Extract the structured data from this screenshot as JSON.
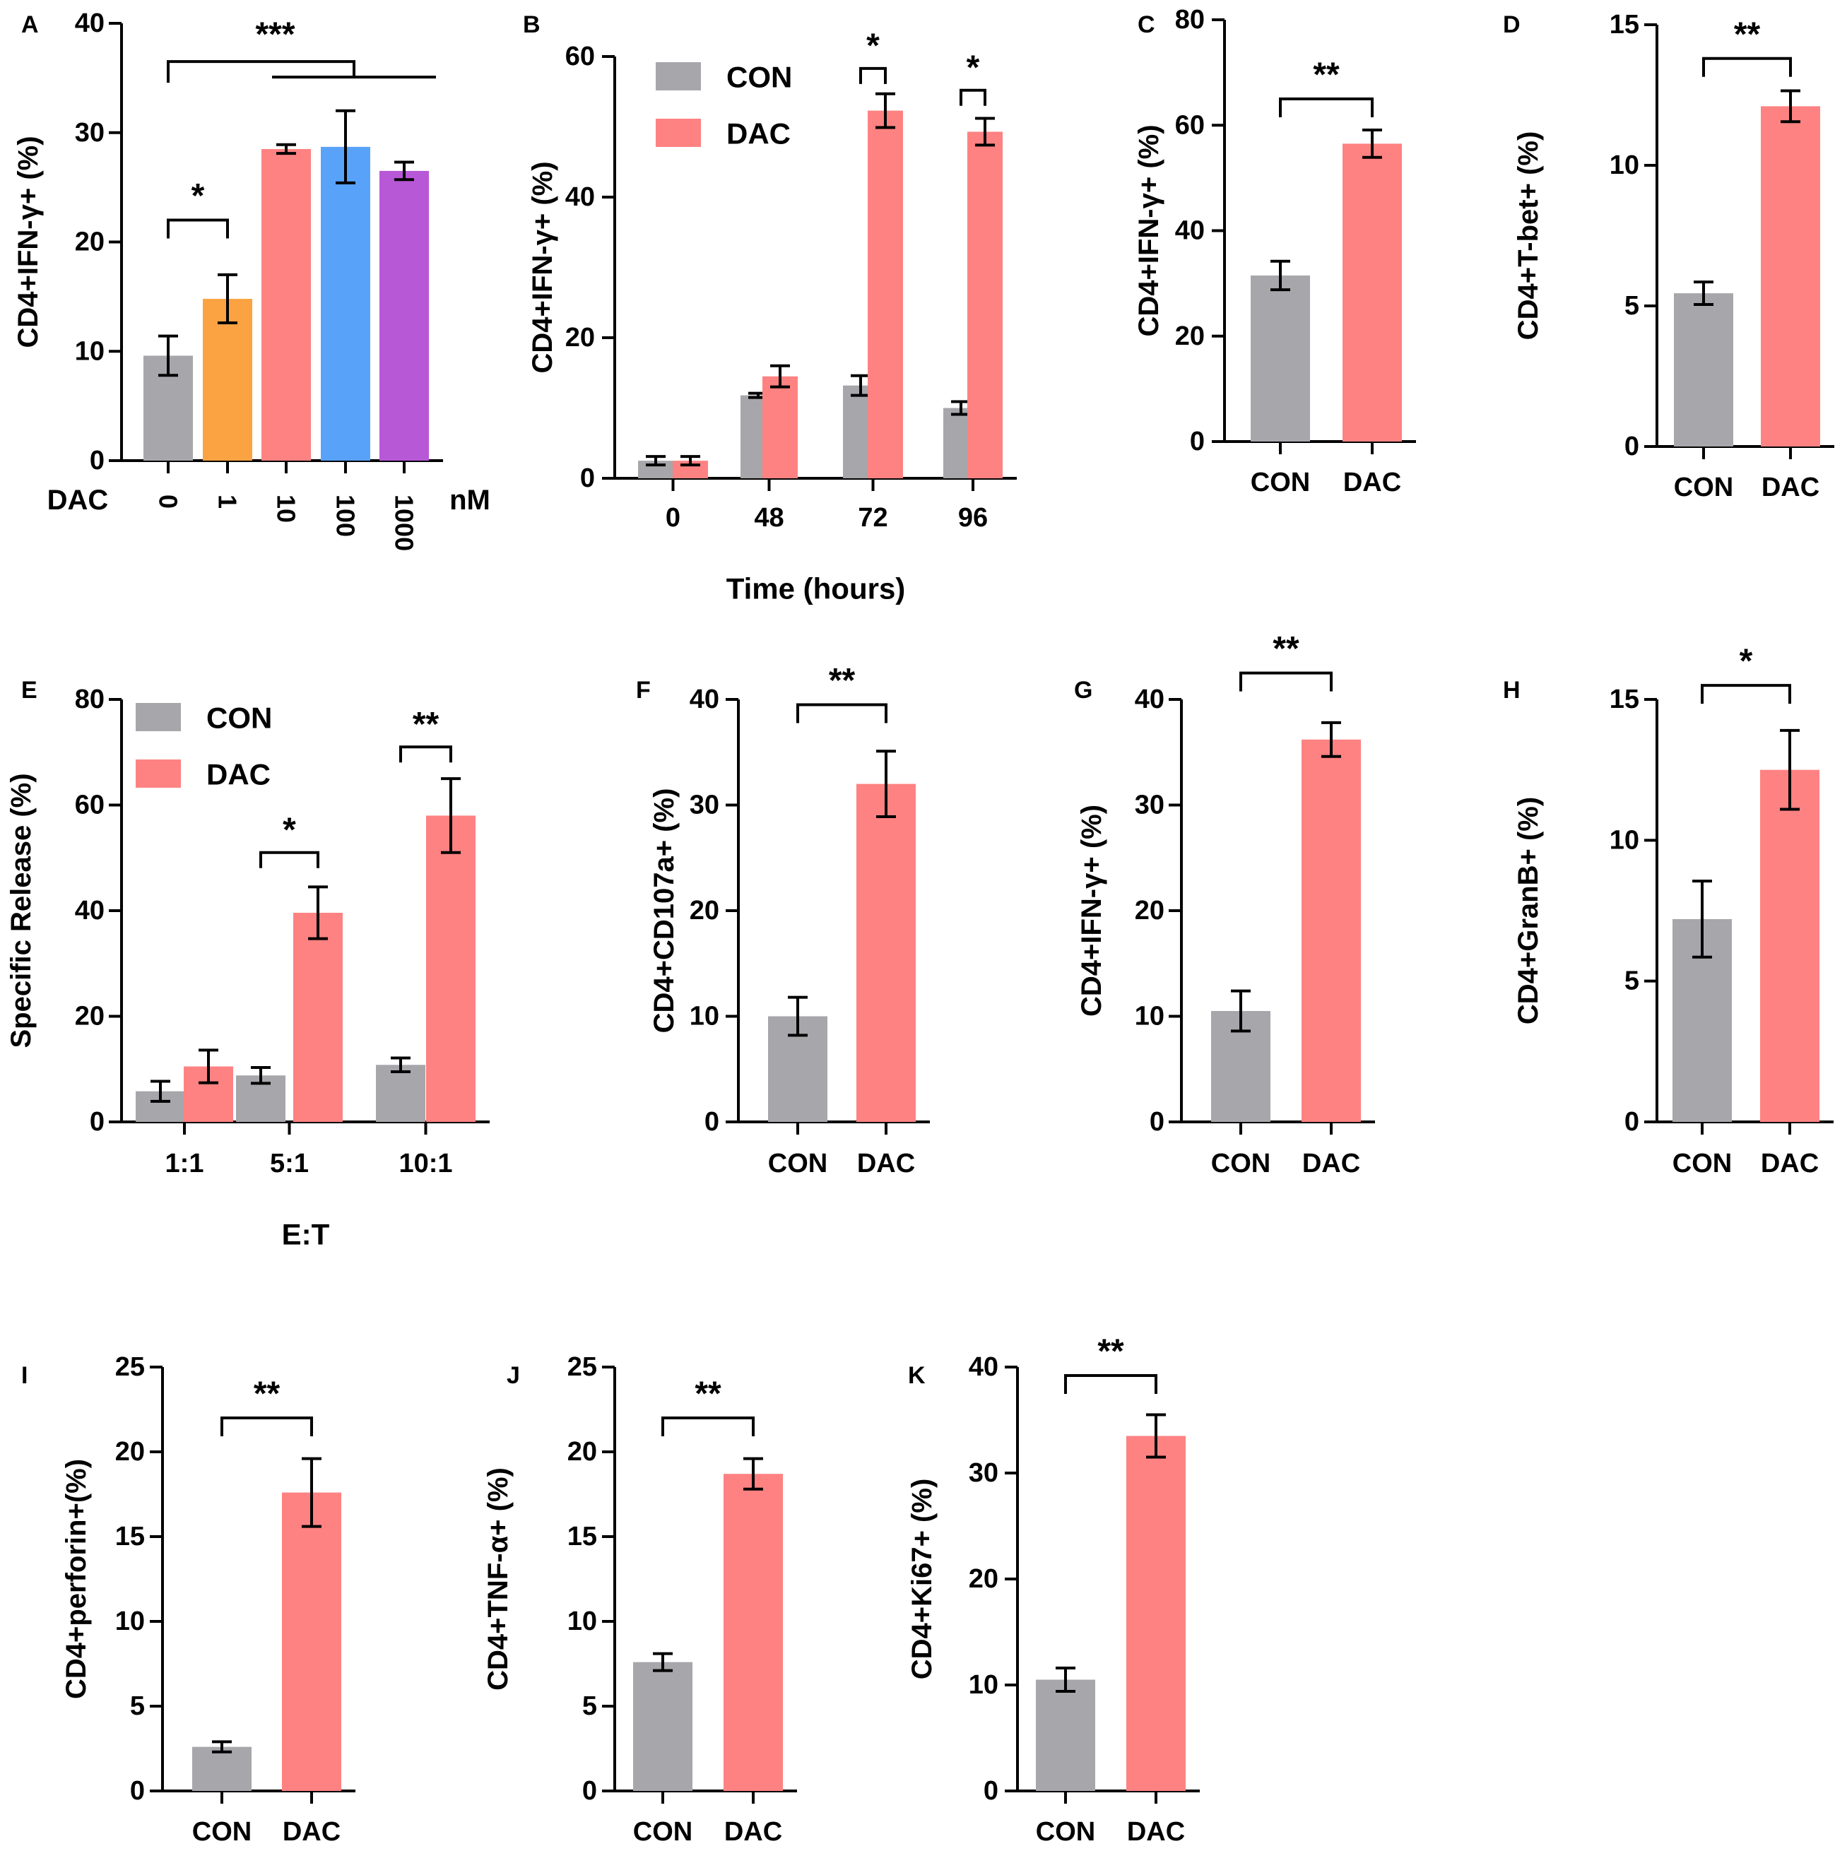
{
  "chart_data": [
    {
      "panel": "A",
      "type": "bar",
      "ylabel": "CD4+IFN-γ+ (%)",
      "ylim": [
        0,
        40
      ],
      "yticks": [
        0,
        10,
        20,
        30,
        40
      ],
      "xprefix": "DAC",
      "xunit": "nM",
      "categories": [
        "0",
        "1",
        "10",
        "100",
        "1000"
      ],
      "values": [
        9.6,
        14.8,
        28.5,
        28.7,
        26.5
      ],
      "errors": [
        1.8,
        2.2,
        0.4,
        3.3,
        0.8
      ],
      "colors": [
        "#a7a6ab",
        "#fba342",
        "#fe8282",
        "#58a3f9",
        "#b758d6"
      ],
      "brackets": [
        {
          "from": 0,
          "to": 1,
          "label": "*",
          "y": 22
        },
        {
          "from": 0,
          "to": 2,
          "label": "***",
          "y": 36.5,
          "bar_to": 4
        }
      ]
    },
    {
      "panel": "B",
      "type": "bar",
      "ylabel": "CD4+IFN-γ+ (%)",
      "ylim": [
        0,
        60
      ],
      "yticks": [
        0,
        20,
        40,
        60
      ],
      "xlabel": "Time (hours)",
      "categories": [
        "0",
        "48",
        "72",
        "96"
      ],
      "series": [
        {
          "name": "CON",
          "values": [
            2.5,
            11.8,
            13.2,
            10.0
          ],
          "errors": [
            0.6,
            0.3,
            1.4,
            0.9
          ]
        },
        {
          "name": "DAC",
          "values": [
            2.5,
            14.5,
            52.3,
            49.3
          ],
          "errors": [
            0.6,
            1.5,
            2.4,
            1.9
          ]
        }
      ],
      "legend": "top-left",
      "brackets": [
        {
          "cat": 2,
          "label": "*",
          "y": 58.3
        },
        {
          "cat": 3,
          "label": "*",
          "y": 55.2
        }
      ]
    },
    {
      "panel": "C",
      "type": "bar",
      "ylabel": "CD4+IFN-γ+ (%)",
      "ylim": [
        0,
        80
      ],
      "yticks": [
        0,
        20,
        40,
        60,
        80
      ],
      "categories": [
        "CON",
        "DAC"
      ],
      "values": [
        31.5,
        56.5
      ],
      "errors": [
        2.7,
        2.6
      ],
      "brackets": [
        {
          "from": 0,
          "to": 1,
          "label": "**",
          "y": 65
        }
      ]
    },
    {
      "panel": "D",
      "type": "bar",
      "ylabel": "CD4+T-bet+ (%)",
      "ylim": [
        0,
        15
      ],
      "yticks": [
        0,
        5,
        10,
        15
      ],
      "categories": [
        "CON",
        "DAC"
      ],
      "values": [
        5.45,
        12.1
      ],
      "errors": [
        0.4,
        0.55
      ],
      "brackets": [
        {
          "from": 0,
          "to": 1,
          "label": "**",
          "y": 13.8
        }
      ]
    },
    {
      "panel": "E",
      "type": "bar",
      "ylabel": "Specific Release (%)",
      "ylim": [
        0,
        80
      ],
      "yticks": [
        0,
        20,
        40,
        60,
        80
      ],
      "xlabel": "E:T",
      "categories": [
        "1:1",
        "5:1",
        "10:1"
      ],
      "series": [
        {
          "name": "CON",
          "values": [
            5.8,
            8.8,
            10.8
          ],
          "errors": [
            1.9,
            1.5,
            1.3
          ]
        },
        {
          "name": "DAC",
          "values": [
            10.5,
            39.6,
            58.0
          ],
          "errors": [
            3.1,
            4.9,
            7.0
          ]
        }
      ],
      "legend": "top-left",
      "brackets": [
        {
          "cat": 1,
          "label": "*",
          "y": 51
        },
        {
          "cat": 2,
          "label": "**",
          "y": 71
        }
      ]
    },
    {
      "panel": "F",
      "type": "bar",
      "ylabel": "CD4+CD107a+ (%)",
      "ylim": [
        0,
        40
      ],
      "yticks": [
        0,
        10,
        20,
        30,
        40
      ],
      "categories": [
        "CON",
        "DAC"
      ],
      "values": [
        10.0,
        32.0
      ],
      "errors": [
        1.8,
        3.1
      ],
      "brackets": [
        {
          "from": 0,
          "to": 1,
          "label": "**",
          "y": 39.5
        }
      ]
    },
    {
      "panel": "G",
      "type": "bar",
      "ylabel": "CD4+IFN-γ+ (%)",
      "ylim": [
        0,
        40
      ],
      "yticks": [
        0,
        10,
        20,
        30,
        40
      ],
      "categories": [
        "CON",
        "DAC"
      ],
      "values": [
        10.5,
        36.2
      ],
      "errors": [
        1.9,
        1.6
      ],
      "brackets": [
        {
          "from": 0,
          "to": 1,
          "label": "**",
          "y": 42.5
        }
      ]
    },
    {
      "panel": "H",
      "type": "bar",
      "ylabel": "CD4+GranB+ (%)",
      "ylim": [
        0,
        15
      ],
      "yticks": [
        0,
        5,
        10,
        15
      ],
      "categories": [
        "CON",
        "DAC"
      ],
      "values": [
        7.2,
        12.5
      ],
      "errors": [
        1.35,
        1.4
      ],
      "brackets": [
        {
          "from": 0,
          "to": 1,
          "label": "*",
          "y": 15.5
        }
      ]
    },
    {
      "panel": "I",
      "type": "bar",
      "ylabel": "CD4+perforin+(%)",
      "ylim": [
        0,
        25
      ],
      "yticks": [
        0,
        5,
        10,
        15,
        20,
        25
      ],
      "categories": [
        "CON",
        "DAC"
      ],
      "values": [
        2.6,
        17.6
      ],
      "errors": [
        0.3,
        2.0
      ],
      "brackets": [
        {
          "from": 0,
          "to": 1,
          "label": "**",
          "y": 22
        }
      ]
    },
    {
      "panel": "J",
      "type": "bar",
      "ylabel": "CD4+TNF-α+ (%)",
      "ylim": [
        0,
        25
      ],
      "yticks": [
        0,
        5,
        10,
        15,
        20,
        25
      ],
      "categories": [
        "CON",
        "DAC"
      ],
      "values": [
        7.6,
        18.7
      ],
      "errors": [
        0.5,
        0.9
      ],
      "brackets": [
        {
          "from": 0,
          "to": 1,
          "label": "**",
          "y": 22
        }
      ]
    },
    {
      "panel": "K",
      "type": "bar",
      "ylabel": "CD4+Ki67+ (%)",
      "ylim": [
        0,
        40
      ],
      "yticks": [
        0,
        10,
        20,
        30,
        40
      ],
      "categories": [
        "CON",
        "DAC"
      ],
      "values": [
        10.5,
        33.5
      ],
      "errors": [
        1.1,
        2.0
      ],
      "brackets": [
        {
          "from": 0,
          "to": 1,
          "label": "**",
          "y": 39.2
        }
      ]
    }
  ],
  "colors": {
    "con": "#a7a6ab",
    "dac": "#fe8282",
    "axis": "#000000"
  }
}
